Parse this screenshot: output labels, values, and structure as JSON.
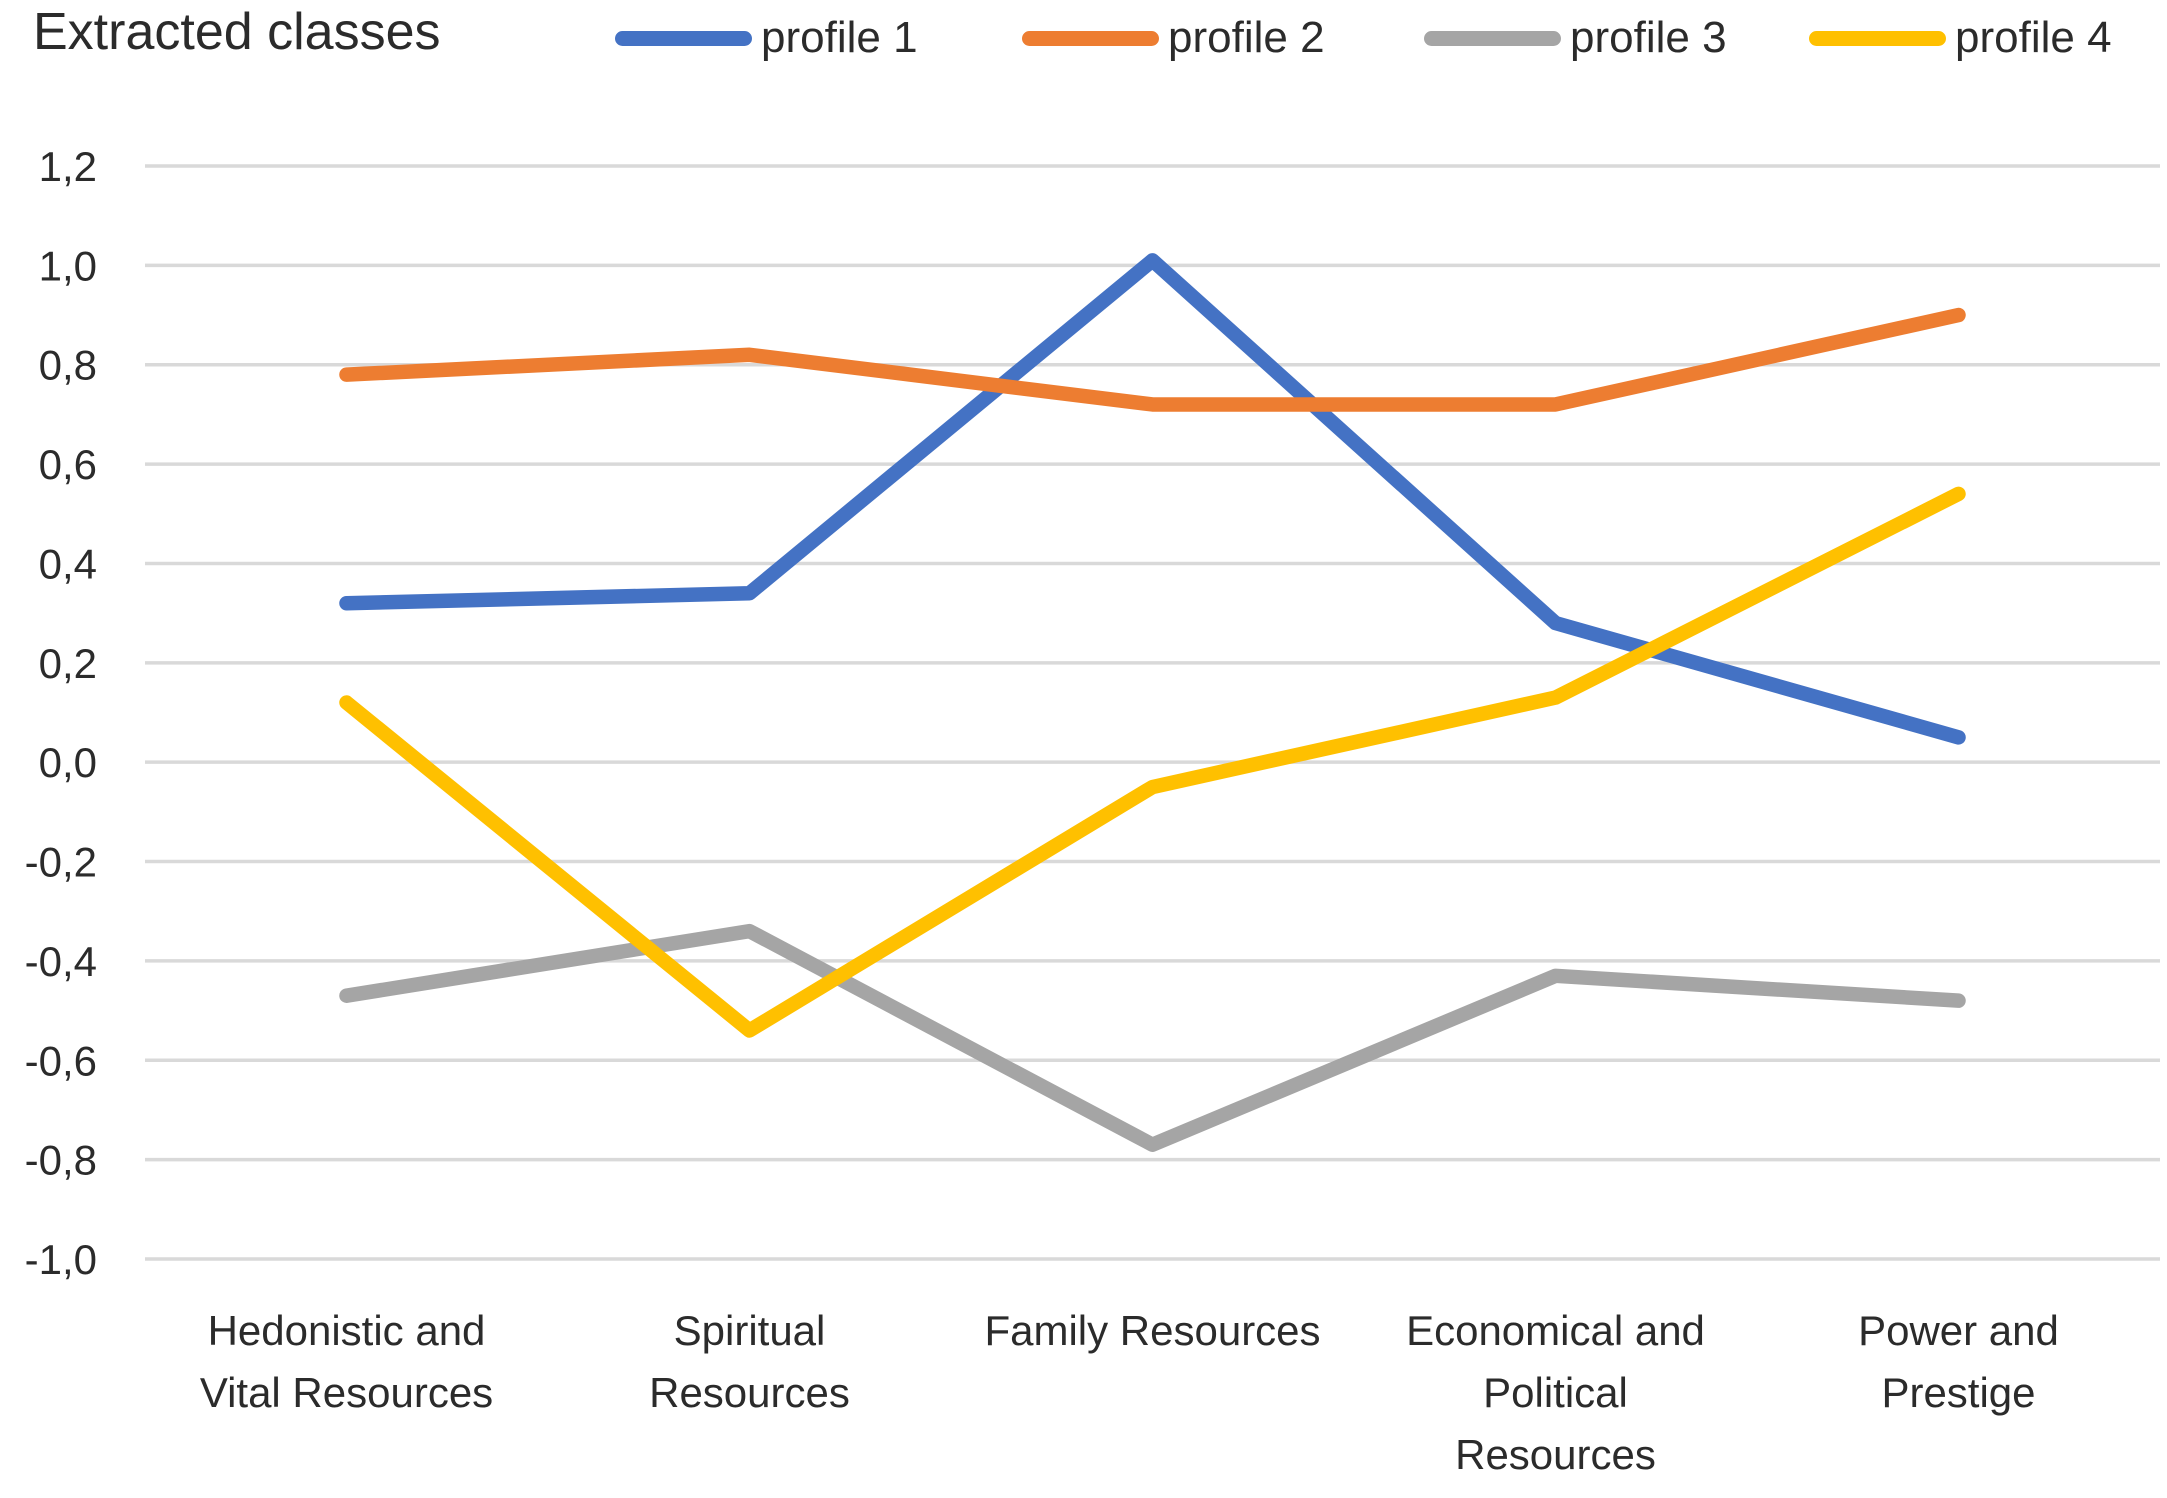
{
  "chart_data": {
    "type": "line",
    "title": "Extracted classes",
    "categories": [
      "Hedonistic and Vital Resources",
      "Spiritual Resources",
      "Family Resources",
      "Economical and Political Resources",
      "Power and Prestige"
    ],
    "category_label_lines": [
      [
        "Hedonistic and",
        "Vital Resources"
      ],
      [
        "Spiritual",
        "Resources"
      ],
      [
        "Family Resources"
      ],
      [
        "Economical and",
        "Political",
        "Resources"
      ],
      [
        "Power and",
        "Prestige"
      ]
    ],
    "series": [
      {
        "name": "profile 1",
        "color": "#4472C4",
        "values": [
          0.32,
          0.34,
          1.01,
          0.28,
          0.05
        ]
      },
      {
        "name": "profile 2",
        "color": "#ED7D31",
        "values": [
          0.78,
          0.82,
          0.72,
          0.72,
          0.9
        ]
      },
      {
        "name": "profile 3",
        "color": "#A5A5A5",
        "values": [
          -0.47,
          -0.34,
          -0.77,
          -0.43,
          -0.48
        ]
      },
      {
        "name": "profile 4",
        "color": "#FFC000",
        "values": [
          0.12,
          -0.54,
          -0.05,
          0.13,
          0.54
        ]
      }
    ],
    "y_axis": {
      "min": -1.0,
      "max": 1.2,
      "step": 0.2,
      "tick_labels": [
        "1,2",
        "1,0",
        "0,8",
        "0,6",
        "0,4",
        "0,2",
        "0,0",
        "-0,2",
        "-0,4",
        "-0,6",
        "-0,8",
        "-1,0"
      ]
    },
    "ylim": [
      -1.0,
      1.2
    ],
    "grid": true,
    "gridline_color": "#D9D9D9",
    "legend_position": "top"
  }
}
